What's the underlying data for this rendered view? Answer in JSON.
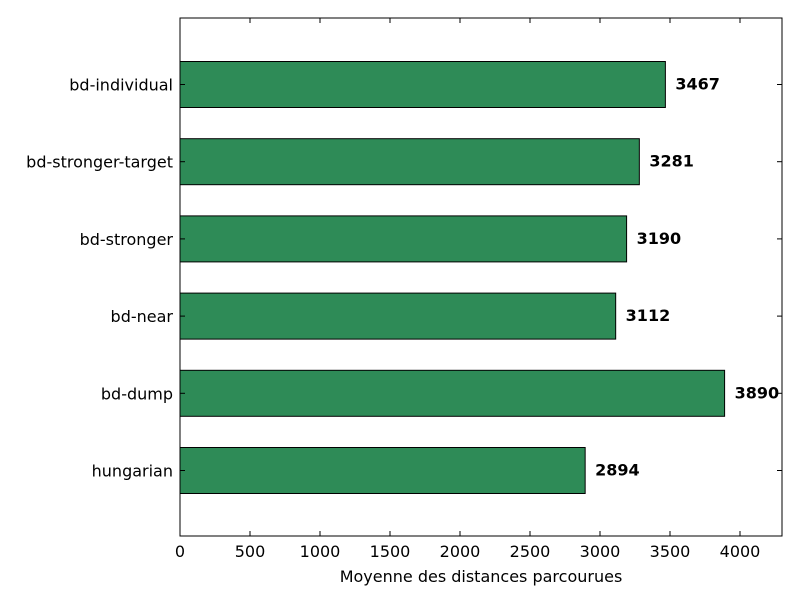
{
  "chart_data": {
    "type": "bar",
    "orientation": "horizontal",
    "categories": [
      "bd-individual",
      "bd-stronger-target",
      "bd-stronger",
      "bd-near",
      "bd-dump",
      "hungarian"
    ],
    "values": [
      3467,
      3281,
      3190,
      3112,
      3890,
      2894
    ],
    "value_labels": [
      "3467",
      "3281",
      "3190",
      "3112",
      "3890",
      "2894"
    ],
    "xlabel": "Moyenne des distances parcourues",
    "ylabel": "",
    "title": "",
    "xlim": [
      0,
      4300
    ],
    "xticks": [
      0,
      500,
      1000,
      1500,
      2000,
      2500,
      3000,
      3500,
      4000
    ],
    "xtick_labels": [
      "0",
      "500",
      "1000",
      "1500",
      "2000",
      "2500",
      "3000",
      "3500",
      "4000"
    ],
    "bar_color": "#2e8b57",
    "grid": false,
    "legend": false
  }
}
